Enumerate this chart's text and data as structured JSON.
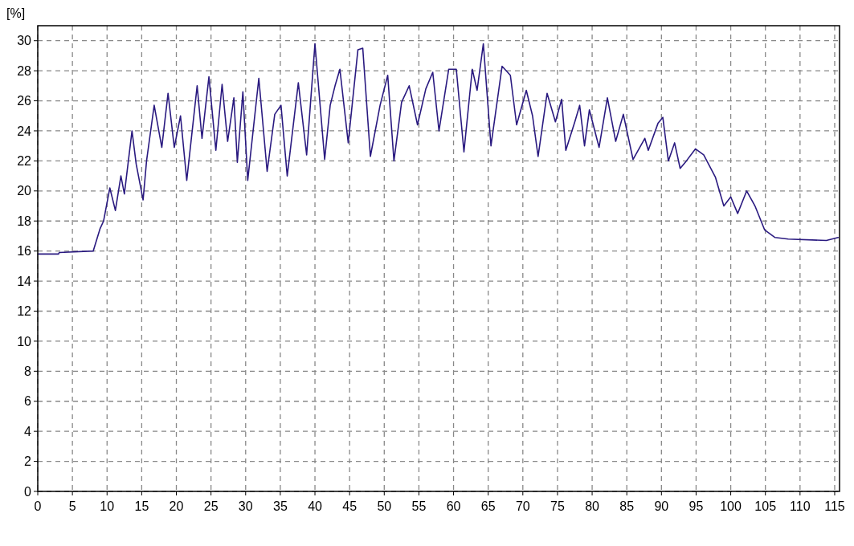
{
  "chart_data": {
    "type": "line",
    "ylabel": "[%]",
    "xlim": [
      0,
      115.7
    ],
    "ylim": [
      0,
      31
    ],
    "xticks": [
      0,
      5,
      10,
      15,
      20,
      25,
      30,
      35,
      40,
      45,
      50,
      55,
      60,
      65,
      70,
      75,
      80,
      85,
      90,
      95,
      100,
      105,
      110,
      115
    ],
    "yticks": [
      0,
      2,
      4,
      6,
      8,
      10,
      12,
      14,
      16,
      18,
      20,
      22,
      24,
      26,
      28,
      30
    ],
    "grid": true,
    "marker": "none",
    "line_style": "solid",
    "series": [
      {
        "color": "#2a1a80",
        "x": [
          0,
          3,
          3.1,
          8,
          9,
          9.5,
          10.4,
          11.2,
          12,
          12.5,
          13.6,
          14.2,
          15.2,
          15.7,
          16.8,
          17.9,
          18.8,
          19.7,
          20.6,
          21.5,
          23,
          23.7,
          24.7,
          25.7,
          26.6,
          27.4,
          28.3,
          28.8,
          29.6,
          30.3,
          31.9,
          33.1,
          34.2,
          35.1,
          36,
          37.6,
          38.8,
          40,
          41.4,
          42.2,
          42.9,
          43.6,
          44.8,
          46.2,
          46.9,
          48,
          49.4,
          50.5,
          51.4,
          52.5,
          53.6,
          54.8,
          56,
          57,
          57.9,
          59.3,
          60.4,
          61.5,
          62.7,
          63.4,
          64.3,
          65.4,
          67,
          68.2,
          69.1,
          70.5,
          71.4,
          72.2,
          73.5,
          74.7,
          75.6,
          76.2,
          77.5,
          78.2,
          78.9,
          79.6,
          81,
          82.2,
          83.4,
          84.5,
          85.9,
          87.6,
          88.1,
          89.5,
          90.2,
          91,
          91.9,
          92.7,
          93.6,
          94.9,
          96.1,
          97.8,
          99,
          100,
          101,
          102.3,
          103.5,
          104.9,
          106.4,
          108.3,
          113.8,
          115.5
        ],
        "values": [
          15.8,
          15.8,
          15.9,
          16,
          17.5,
          18,
          20.2,
          18.7,
          21,
          19.8,
          24,
          21.8,
          19.4,
          22,
          25.7,
          22.9,
          26.5,
          22.9,
          25,
          20.7,
          27,
          23.5,
          27.6,
          22.7,
          27.1,
          23.3,
          26.2,
          21.9,
          26.6,
          20.7,
          27.5,
          21.3,
          25.1,
          25.7,
          21,
          27.2,
          22.4,
          29.8,
          22.1,
          25.7,
          27,
          28.1,
          23.2,
          29.4,
          29.5,
          22.3,
          25.7,
          27.7,
          22,
          25.9,
          27,
          24.4,
          26.8,
          27.9,
          24,
          28.1,
          28.1,
          22.6,
          28.1,
          26.7,
          29.8,
          23,
          28.3,
          27.7,
          24.4,
          26.7,
          25,
          22.3,
          26.5,
          24.6,
          26.1,
          22.7,
          24.6,
          25.7,
          23,
          25.4,
          22.9,
          26.2,
          23.3,
          25.1,
          22.1,
          23.5,
          22.7,
          24.5,
          24.9,
          22,
          23.2,
          21.5,
          22,
          22.8,
          22.4,
          20.9,
          19,
          19.6,
          18.5,
          20,
          19,
          17.4,
          16.9,
          16.8,
          16.7,
          16.9
        ]
      }
    ]
  }
}
